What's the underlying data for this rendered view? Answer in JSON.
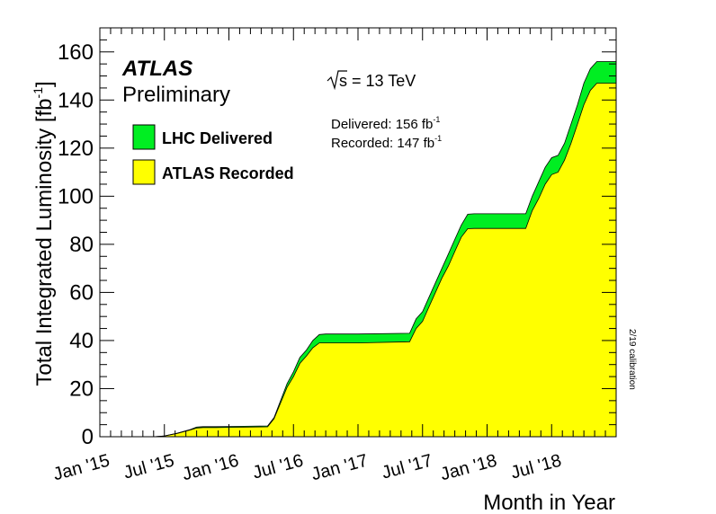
{
  "chart_data": {
    "type": "area",
    "experiment": "ATLAS",
    "status": "Preliminary",
    "energy": "13 TeV",
    "energy_prefix": "s",
    "energy_equals": "= ",
    "delivered_text": "Delivered: 156 fb",
    "recorded_text": "Recorded: 147 fb",
    "inv_exp": "-1",
    "side_note": "2/19 calibration",
    "ylabel": "Total Integrated Luminosity  [fb",
    "ylabel_exp": "-1",
    "ylabel_close": "]",
    "xlabel": "Month in Year",
    "ylim": [
      0,
      170
    ],
    "xlim": [
      2015.0,
      2019.0
    ],
    "grid": false,
    "legend_position": "top-left",
    "x_tick_labels": [
      "Jan '15",
      "Jul '15",
      "Jan '16",
      "Jul '16",
      "Jan '17",
      "Jul '17",
      "Jan '18",
      "Jul '18"
    ],
    "x_tick_values": [
      2015.0,
      2015.5,
      2016.0,
      2016.5,
      2017.0,
      2017.5,
      2018.0,
      2018.5
    ],
    "y_ticks": [
      0,
      20,
      40,
      60,
      80,
      100,
      120,
      140,
      160
    ],
    "series": [
      {
        "name": "LHC Delivered",
        "color": "#00ee22",
        "x": [
          2015.0,
          2015.42,
          2015.5,
          2015.6,
          2015.7,
          2015.75,
          2015.8,
          2015.85,
          2015.9,
          2016.3,
          2016.35,
          2016.4,
          2016.45,
          2016.5,
          2016.55,
          2016.6,
          2016.65,
          2016.7,
          2016.75,
          2016.8,
          2016.85,
          2017.0,
          2017.4,
          2017.45,
          2017.5,
          2017.55,
          2017.6,
          2017.65,
          2017.7,
          2017.75,
          2017.8,
          2017.85,
          2017.9,
          2018.3,
          2018.35,
          2018.4,
          2018.45,
          2018.5,
          2018.55,
          2018.6,
          2018.65,
          2018.7,
          2018.75,
          2018.8,
          2018.85,
          2019.0
        ],
        "y": [
          0,
          0,
          0.3,
          1.5,
          3.0,
          4.0,
          4.2,
          4.2,
          4.2,
          4.5,
          8,
          15,
          22,
          27,
          33,
          36,
          40,
          42.5,
          42.7,
          42.7,
          42.7,
          42.7,
          43,
          49,
          52,
          58,
          64,
          70,
          76,
          82,
          88,
          92.5,
          92.7,
          92.7,
          100,
          106,
          112,
          116,
          117,
          122,
          130,
          138,
          147,
          153,
          156,
          156
        ]
      },
      {
        "name": "ATLAS Recorded",
        "color": "#ffff00",
        "x": [
          2015.0,
          2015.42,
          2015.5,
          2015.6,
          2015.7,
          2015.75,
          2015.8,
          2015.85,
          2015.9,
          2016.3,
          2016.35,
          2016.4,
          2016.45,
          2016.5,
          2016.55,
          2016.6,
          2016.65,
          2016.7,
          2016.75,
          2016.8,
          2016.85,
          2017.0,
          2017.4,
          2017.45,
          2017.5,
          2017.55,
          2017.6,
          2017.65,
          2017.7,
          2017.75,
          2017.8,
          2017.85,
          2017.9,
          2018.3,
          2018.35,
          2018.4,
          2018.45,
          2018.5,
          2018.55,
          2018.6,
          2018.65,
          2018.7,
          2018.75,
          2018.8,
          2018.85,
          2019.0
        ],
        "y": [
          0,
          0,
          0.3,
          1.4,
          2.8,
          3.6,
          3.8,
          3.8,
          3.8,
          4.1,
          7.5,
          14,
          20.5,
          25,
          30.5,
          33.5,
          37,
          39,
          39,
          39,
          39,
          39,
          39.5,
          45,
          48,
          54,
          60,
          66,
          71,
          77,
          83,
          86.5,
          86.6,
          86.6,
          94,
          99,
          105,
          109,
          110,
          115,
          122,
          130,
          138,
          144,
          147,
          147
        ]
      }
    ]
  }
}
